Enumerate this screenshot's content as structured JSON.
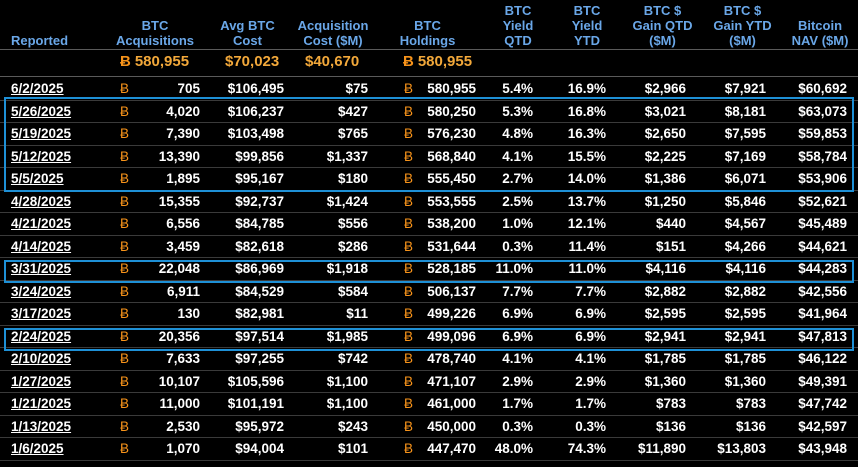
{
  "headers": [
    {
      "label": "Reported"
    },
    {
      "label": "BTC\nAcquisitions"
    },
    {
      "label": "Avg BTC\nCost"
    },
    {
      "label": "Acquisition\nCost ($M)"
    },
    {
      "label": "BTC\nHoldings"
    },
    {
      "label": "BTC\nYield\nQTD"
    },
    {
      "label": "BTC\nYield\nYTD"
    },
    {
      "label": "BTC $\nGain QTD\n($M)"
    },
    {
      "label": "BTC $\nGain YTD\n($M)"
    },
    {
      "label": "Bitcoin\nNAV ($M)"
    }
  ],
  "totals": {
    "acquisitions": "580,955",
    "avg_cost": "$70,023",
    "acq_cost": "$40,670",
    "holdings": "580,955"
  },
  "btc_symbol": "Ƀ",
  "accent_color": "#1e90d6",
  "btc_color": "#f7931a",
  "rows": [
    {
      "date": "6/2/2025",
      "acq": "705",
      "avg": "$106,495",
      "cost": "$75",
      "hold": "580,955",
      "yqtd": "5.4%",
      "yytd": "16.9%",
      "gqtd": "$2,966",
      "gytd": "$7,921",
      "nav": "$60,692"
    },
    {
      "date": "5/26/2025",
      "acq": "4,020",
      "avg": "$106,237",
      "cost": "$427",
      "hold": "580,250",
      "yqtd": "5.3%",
      "yytd": "16.8%",
      "gqtd": "$3,021",
      "gytd": "$8,181",
      "nav": "$63,073"
    },
    {
      "date": "5/19/2025",
      "acq": "7,390",
      "avg": "$103,498",
      "cost": "$765",
      "hold": "576,230",
      "yqtd": "4.8%",
      "yytd": "16.3%",
      "gqtd": "$2,650",
      "gytd": "$7,595",
      "nav": "$59,853"
    },
    {
      "date": "5/12/2025",
      "acq": "13,390",
      "avg": "$99,856",
      "cost": "$1,337",
      "hold": "568,840",
      "yqtd": "4.1%",
      "yytd": "15.5%",
      "gqtd": "$2,225",
      "gytd": "$7,169",
      "nav": "$58,784"
    },
    {
      "date": "5/5/2025",
      "acq": "1,895",
      "avg": "$95,167",
      "cost": "$180",
      "hold": "555,450",
      "yqtd": "2.7%",
      "yytd": "14.0%",
      "gqtd": "$1,386",
      "gytd": "$6,071",
      "nav": "$53,906"
    },
    {
      "date": "4/28/2025",
      "acq": "15,355",
      "avg": "$92,737",
      "cost": "$1,424",
      "hold": "553,555",
      "yqtd": "2.5%",
      "yytd": "13.7%",
      "gqtd": "$1,250",
      "gytd": "$5,846",
      "nav": "$52,621"
    },
    {
      "date": "4/21/2025",
      "acq": "6,556",
      "avg": "$84,785",
      "cost": "$556",
      "hold": "538,200",
      "yqtd": "1.0%",
      "yytd": "12.1%",
      "gqtd": "$440",
      "gytd": "$4,567",
      "nav": "$45,489"
    },
    {
      "date": "4/14/2025",
      "acq": "3,459",
      "avg": "$82,618",
      "cost": "$286",
      "hold": "531,644",
      "yqtd": "0.3%",
      "yytd": "11.4%",
      "gqtd": "$151",
      "gytd": "$4,266",
      "nav": "$44,621"
    },
    {
      "date": "3/31/2025",
      "acq": "22,048",
      "avg": "$86,969",
      "cost": "$1,918",
      "hold": "528,185",
      "yqtd": "11.0%",
      "yytd": "11.0%",
      "gqtd": "$4,116",
      "gytd": "$4,116",
      "nav": "$44,283"
    },
    {
      "date": "3/24/2025",
      "acq": "6,911",
      "avg": "$84,529",
      "cost": "$584",
      "hold": "506,137",
      "yqtd": "7.7%",
      "yytd": "7.7%",
      "gqtd": "$2,882",
      "gytd": "$2,882",
      "nav": "$42,556"
    },
    {
      "date": "3/17/2025",
      "acq": "130",
      "avg": "$82,981",
      "cost": "$11",
      "hold": "499,226",
      "yqtd": "6.9%",
      "yytd": "6.9%",
      "gqtd": "$2,595",
      "gytd": "$2,595",
      "nav": "$41,964"
    },
    {
      "date": "2/24/2025",
      "acq": "20,356",
      "avg": "$97,514",
      "cost": "$1,985",
      "hold": "499,096",
      "yqtd": "6.9%",
      "yytd": "6.9%",
      "gqtd": "$2,941",
      "gytd": "$2,941",
      "nav": "$47,813"
    },
    {
      "date": "2/10/2025",
      "acq": "7,633",
      "avg": "$97,255",
      "cost": "$742",
      "hold": "478,740",
      "yqtd": "4.1%",
      "yytd": "4.1%",
      "gqtd": "$1,785",
      "gytd": "$1,785",
      "nav": "$46,122"
    },
    {
      "date": "1/27/2025",
      "acq": "10,107",
      "avg": "$105,596",
      "cost": "$1,100",
      "hold": "471,107",
      "yqtd": "2.9%",
      "yytd": "2.9%",
      "gqtd": "$1,360",
      "gytd": "$1,360",
      "nav": "$49,391"
    },
    {
      "date": "1/21/2025",
      "acq": "11,000",
      "avg": "$101,191",
      "cost": "$1,100",
      "hold": "461,000",
      "yqtd": "1.7%",
      "yytd": "1.7%",
      "gqtd": "$783",
      "gytd": "$783",
      "nav": "$47,742"
    },
    {
      "date": "1/13/2025",
      "acq": "2,530",
      "avg": "$95,972",
      "cost": "$243",
      "hold": "450,000",
      "yqtd": "0.3%",
      "yytd": "0.3%",
      "gqtd": "$136",
      "gytd": "$136",
      "nav": "$42,597"
    },
    {
      "date": "1/6/2025",
      "acq": "1,070",
      "avg": "$94,004",
      "cost": "$101",
      "hold": "447,470",
      "yqtd": "48.0%",
      "yytd": "74.3%",
      "gqtd": "$11,890",
      "gytd": "$13,803",
      "nav": "$43,948"
    }
  ]
}
